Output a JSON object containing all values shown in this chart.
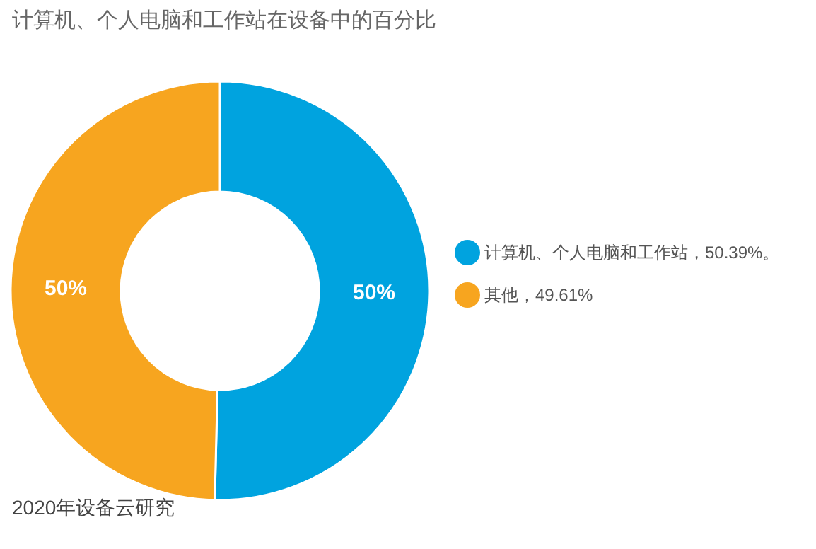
{
  "chart_data": {
    "type": "donut",
    "title": "计算机、个人电脑和工作站在设备中的百分比",
    "categories": [
      "计算机、个人电脑和工作站，50.39%。",
      "其他，49.61%"
    ],
    "values": [
      50.39,
      49.61
    ],
    "colors": [
      "#00a3df",
      "#f7a51f"
    ],
    "value_labels": [
      "50%",
      "50%"
    ],
    "legend": "right",
    "annotations": [
      "2020年设备云研究"
    ]
  }
}
